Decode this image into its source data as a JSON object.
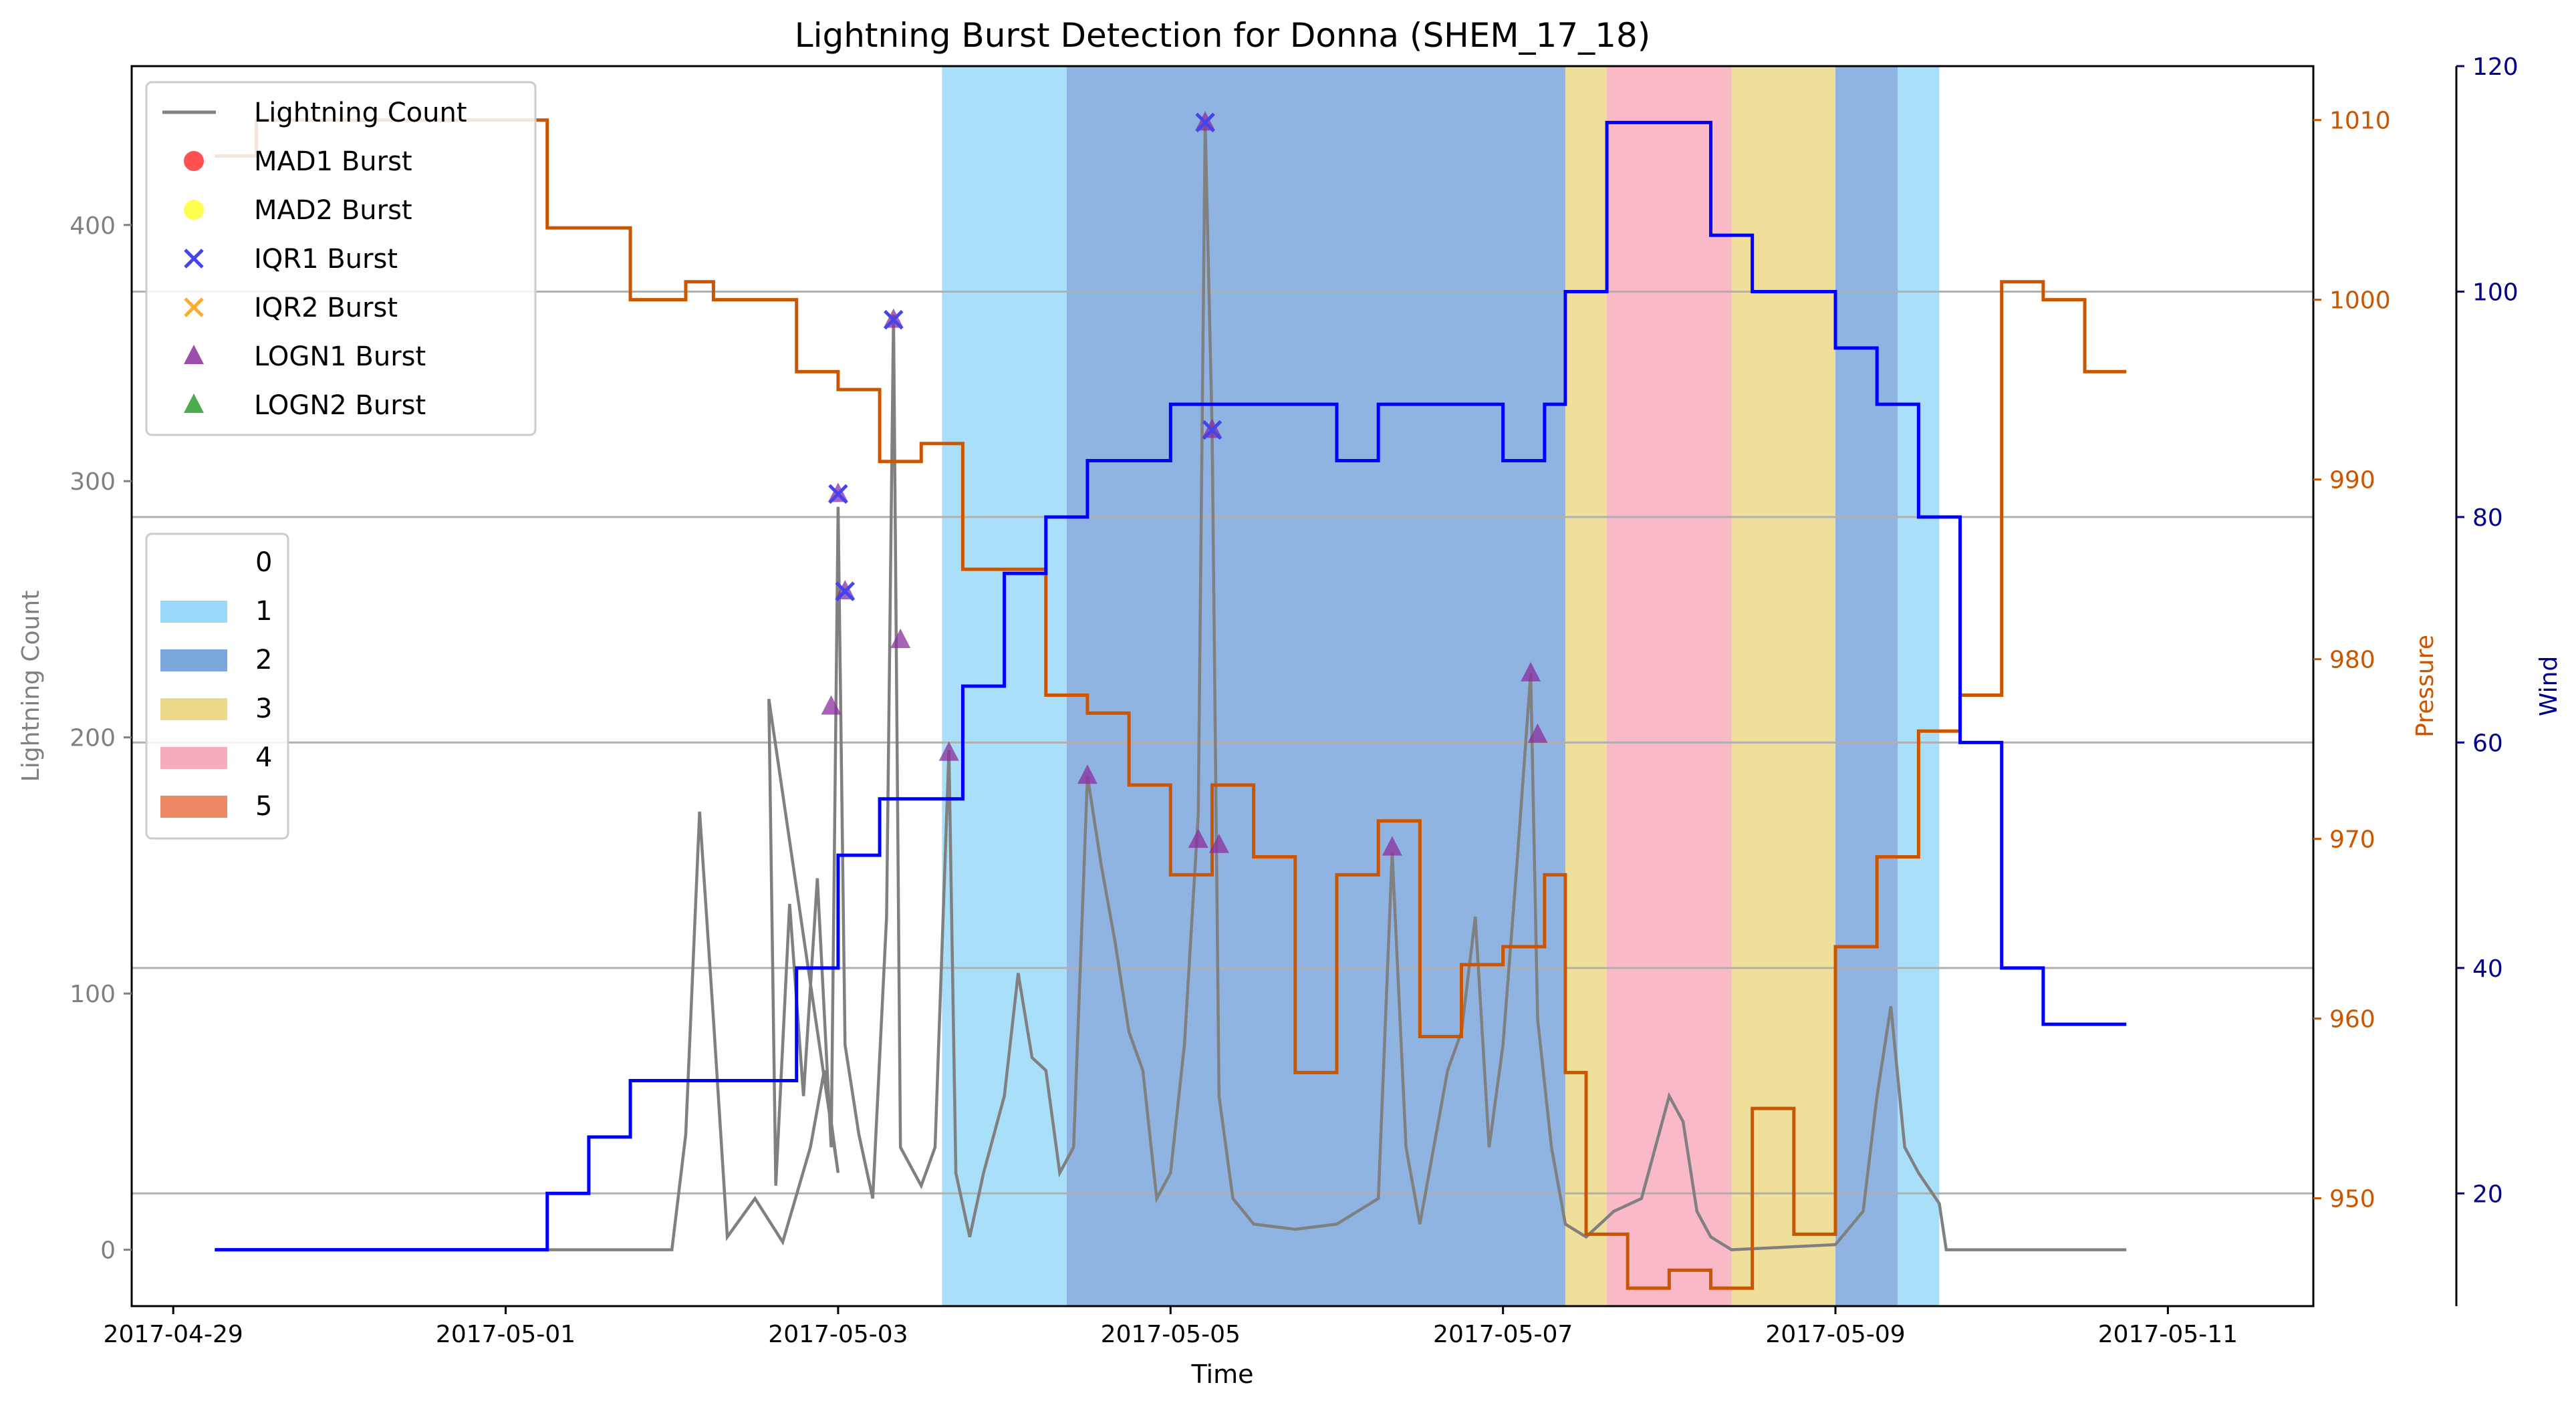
{
  "chart_data": {
    "type": "line",
    "title": "Lightning Burst Detection for Donna (SHEM_17_18)",
    "xlabel": "Time",
    "x_ticks": [
      "2017-04-29",
      "2017-05-01",
      "2017-05-03",
      "2017-05-05",
      "2017-05-07",
      "2017-05-09",
      "2017-05-11"
    ],
    "xlim": [
      "2017-04-28 18:00",
      "2017-05-11 21:00"
    ],
    "axes": {
      "left": {
        "label": "Lightning Count",
        "ylim": [
          -22,
          462
        ],
        "ticks": [
          0,
          100,
          200,
          300,
          400
        ],
        "color": "#808080"
      },
      "right1": {
        "label": "Pressure",
        "ylim": [
          944,
          1013
        ],
        "ticks": [
          950,
          960,
          970,
          980,
          990,
          1000,
          1010
        ],
        "color": "#cc5500"
      },
      "right2": {
        "label": "Wind",
        "ylim": [
          10,
          120
        ],
        "ticks": [
          20,
          40,
          60,
          80,
          100,
          120
        ],
        "color": "#00008b"
      }
    },
    "grid": "horizontal lines at right-axis (wind) ticks",
    "category_bands": [
      {
        "category": "1",
        "start": "2017-05-03 15:00",
        "end": "2017-05-04 09:00"
      },
      {
        "category": "2",
        "start": "2017-05-04 09:00",
        "end": "2017-05-07 09:00"
      },
      {
        "category": "3",
        "start": "2017-05-07 09:00",
        "end": "2017-05-07 15:00"
      },
      {
        "category": "4",
        "start": "2017-05-07 15:00",
        "end": "2017-05-08 09:00"
      },
      {
        "category": "3",
        "start": "2017-05-08 09:00",
        "end": "2017-05-09 00:00"
      },
      {
        "category": "2",
        "start": "2017-05-09 00:00",
        "end": "2017-05-09 09:00"
      },
      {
        "category": "1",
        "start": "2017-05-09 09:00",
        "end": "2017-05-09 15:00"
      }
    ],
    "series": [
      {
        "name": "Lightning Count",
        "axis": "left",
        "color": "#808080",
        "style": "line",
        "points": [
          [
            "2017-04-29 06:00",
            0
          ],
          [
            "2017-05-02 00:00",
            0
          ],
          [
            "2017-05-02 02:00",
            45
          ],
          [
            "2017-05-02 04:00",
            171
          ],
          [
            "2017-05-02 06:00",
            90
          ],
          [
            "2017-05-02 08:00",
            5
          ],
          [
            "2017-05-02 12:00",
            20
          ],
          [
            "2017-05-02 16:00",
            3
          ],
          [
            "2017-05-02 20:00",
            40
          ],
          [
            "2017-05-02 22:00",
            70
          ],
          [
            "2017-05-03 00:00",
            30
          ],
          [
            "2017-05-02 14:00",
            215
          ],
          [
            "2017-05-02 15:00",
            25
          ],
          [
            "2017-05-02 17:00",
            135
          ],
          [
            "2017-05-02 19:00",
            60
          ],
          [
            "2017-05-02 21:00",
            145
          ],
          [
            "2017-05-02 23:00",
            40
          ],
          [
            "2017-05-03 00:00",
            290
          ],
          [
            "2017-05-03 01:00",
            80
          ],
          [
            "2017-05-03 03:00",
            45
          ],
          [
            "2017-05-03 05:00",
            20
          ],
          [
            "2017-05-03 07:00",
            130
          ],
          [
            "2017-05-03 08:00",
            365
          ],
          [
            "2017-05-03 09:00",
            40
          ],
          [
            "2017-05-03 12:00",
            25
          ],
          [
            "2017-05-03 14:00",
            40
          ],
          [
            "2017-05-03 16:00",
            195
          ],
          [
            "2017-05-03 17:00",
            30
          ],
          [
            "2017-05-03 19:00",
            5
          ],
          [
            "2017-05-03 21:00",
            30
          ],
          [
            "2017-05-04 00:00",
            60
          ],
          [
            "2017-05-04 02:00",
            108
          ],
          [
            "2017-05-04 04:00",
            75
          ],
          [
            "2017-05-04 06:00",
            70
          ],
          [
            "2017-05-04 08:00",
            30
          ],
          [
            "2017-05-04 10:00",
            40
          ],
          [
            "2017-05-04 12:00",
            185
          ],
          [
            "2017-05-04 14:00",
            150
          ],
          [
            "2017-05-04 16:00",
            120
          ],
          [
            "2017-05-04 18:00",
            85
          ],
          [
            "2017-05-04 20:00",
            70
          ],
          [
            "2017-05-04 22:00",
            20
          ],
          [
            "2017-05-05 00:00",
            30
          ],
          [
            "2017-05-05 02:00",
            80
          ],
          [
            "2017-05-05 04:00",
            170
          ],
          [
            "2017-05-05 05:00",
            440
          ],
          [
            "2017-05-05 06:00",
            320
          ],
          [
            "2017-05-05 07:00",
            60
          ],
          [
            "2017-05-05 09:00",
            20
          ],
          [
            "2017-05-05 12:00",
            10
          ],
          [
            "2017-05-05 18:00",
            8
          ],
          [
            "2017-05-06 00:00",
            10
          ],
          [
            "2017-05-06 06:00",
            20
          ],
          [
            "2017-05-06 08:00",
            155
          ],
          [
            "2017-05-06 10:00",
            40
          ],
          [
            "2017-05-06 12:00",
            10
          ],
          [
            "2017-05-06 16:00",
            70
          ],
          [
            "2017-05-06 18:00",
            85
          ],
          [
            "2017-05-06 20:00",
            130
          ],
          [
            "2017-05-06 22:00",
            40
          ],
          [
            "2017-05-07 00:00",
            80
          ],
          [
            "2017-05-07 02:00",
            150
          ],
          [
            "2017-05-07 04:00",
            225
          ],
          [
            "2017-05-07 05:00",
            90
          ],
          [
            "2017-05-07 07:00",
            40
          ],
          [
            "2017-05-07 09:00",
            10
          ],
          [
            "2017-05-07 12:00",
            5
          ],
          [
            "2017-05-07 16:00",
            15
          ],
          [
            "2017-05-07 20:00",
            20
          ],
          [
            "2017-05-08 00:00",
            60
          ],
          [
            "2017-05-08 02:00",
            50
          ],
          [
            "2017-05-08 04:00",
            15
          ],
          [
            "2017-05-08 06:00",
            5
          ],
          [
            "2017-05-08 09:00",
            0
          ],
          [
            "2017-05-09 00:00",
            2
          ],
          [
            "2017-05-09 04:00",
            15
          ],
          [
            "2017-05-09 06:00",
            60
          ],
          [
            "2017-05-09 08:00",
            95
          ],
          [
            "2017-05-09 10:00",
            40
          ],
          [
            "2017-05-09 12:00",
            30
          ],
          [
            "2017-05-09 15:00",
            18
          ],
          [
            "2017-05-09 16:00",
            0
          ],
          [
            "2017-05-10 18:00",
            0
          ]
        ]
      },
      {
        "name": "Pressure",
        "axis": "right1",
        "color": "#cc5500",
        "style": "step",
        "points": [
          [
            "2017-04-29 06:00",
            1008
          ],
          [
            "2017-04-29 12:00",
            1010
          ],
          [
            "2017-05-01 00:00",
            1010
          ],
          [
            "2017-05-01 06:00",
            1004
          ],
          [
            "2017-05-01 12:00",
            1004
          ],
          [
            "2017-05-01 18:00",
            1000
          ],
          [
            "2017-05-02 00:00",
            1000
          ],
          [
            "2017-05-02 02:00",
            1001
          ],
          [
            "2017-05-02 06:00",
            1000
          ],
          [
            "2017-05-02 12:00",
            1000
          ],
          [
            "2017-05-02 18:00",
            996
          ],
          [
            "2017-05-03 00:00",
            995
          ],
          [
            "2017-05-03 06:00",
            991
          ],
          [
            "2017-05-03 12:00",
            992
          ],
          [
            "2017-05-03 18:00",
            985
          ],
          [
            "2017-05-04 00:00",
            985
          ],
          [
            "2017-05-04 06:00",
            978
          ],
          [
            "2017-05-04 12:00",
            977
          ],
          [
            "2017-05-04 18:00",
            973
          ],
          [
            "2017-05-05 00:00",
            968
          ],
          [
            "2017-05-05 06:00",
            973
          ],
          [
            "2017-05-05 12:00",
            969
          ],
          [
            "2017-05-05 18:00",
            957
          ],
          [
            "2017-05-06 00:00",
            968
          ],
          [
            "2017-05-06 06:00",
            971
          ],
          [
            "2017-05-06 12:00",
            959
          ],
          [
            "2017-05-06 18:00",
            963
          ],
          [
            "2017-05-07 00:00",
            964
          ],
          [
            "2017-05-07 06:00",
            968
          ],
          [
            "2017-05-07 09:00",
            957
          ],
          [
            "2017-05-07 12:00",
            948
          ],
          [
            "2017-05-07 18:00",
            945
          ],
          [
            "2017-05-08 00:00",
            946
          ],
          [
            "2017-05-08 06:00",
            945
          ],
          [
            "2017-05-08 12:00",
            955
          ],
          [
            "2017-05-08 18:00",
            948
          ],
          [
            "2017-05-09 00:00",
            964
          ],
          [
            "2017-05-09 06:00",
            969
          ],
          [
            "2017-05-09 12:00",
            976
          ],
          [
            "2017-05-09 18:00",
            978
          ],
          [
            "2017-05-10 00:00",
            1001
          ],
          [
            "2017-05-10 06:00",
            1000
          ],
          [
            "2017-05-10 12:00",
            996
          ],
          [
            "2017-05-10 18:00",
            996
          ]
        ]
      },
      {
        "name": "Wind",
        "axis": "right2",
        "color": "#0000ff",
        "style": "step",
        "points": [
          [
            "2017-04-29 06:00",
            15
          ],
          [
            "2017-05-01 00:00",
            15
          ],
          [
            "2017-05-01 06:00",
            20
          ],
          [
            "2017-05-01 12:00",
            25
          ],
          [
            "2017-05-01 18:00",
            30
          ],
          [
            "2017-05-02 00:00",
            30
          ],
          [
            "2017-05-02 06:00",
            30
          ],
          [
            "2017-05-02 12:00",
            30
          ],
          [
            "2017-05-02 18:00",
            40
          ],
          [
            "2017-05-03 00:00",
            50
          ],
          [
            "2017-05-03 06:00",
            55
          ],
          [
            "2017-05-03 12:00",
            55
          ],
          [
            "2017-05-03 18:00",
            65
          ],
          [
            "2017-05-04 00:00",
            75
          ],
          [
            "2017-05-04 06:00",
            80
          ],
          [
            "2017-05-04 12:00",
            85
          ],
          [
            "2017-05-04 18:00",
            85
          ],
          [
            "2017-05-05 00:00",
            90
          ],
          [
            "2017-05-05 06:00",
            90
          ],
          [
            "2017-05-05 12:00",
            90
          ],
          [
            "2017-05-05 18:00",
            90
          ],
          [
            "2017-05-06 00:00",
            85
          ],
          [
            "2017-05-06 06:00",
            90
          ],
          [
            "2017-05-06 12:00",
            90
          ],
          [
            "2017-05-06 18:00",
            90
          ],
          [
            "2017-05-07 00:00",
            85
          ],
          [
            "2017-05-07 06:00",
            90
          ],
          [
            "2017-05-07 09:00",
            100
          ],
          [
            "2017-05-07 15:00",
            115
          ],
          [
            "2017-05-08 00:00",
            115
          ],
          [
            "2017-05-08 06:00",
            105
          ],
          [
            "2017-05-08 12:00",
            100
          ],
          [
            "2017-05-08 18:00",
            100
          ],
          [
            "2017-05-09 00:00",
            95
          ],
          [
            "2017-05-09 06:00",
            90
          ],
          [
            "2017-05-09 12:00",
            80
          ],
          [
            "2017-05-09 18:00",
            60
          ],
          [
            "2017-05-10 00:00",
            40
          ],
          [
            "2017-05-10 06:00",
            35
          ],
          [
            "2017-05-10 18:00",
            35
          ]
        ]
      },
      {
        "name": "IQR1 Burst",
        "axis": "left",
        "color": "#4444ee",
        "style": "marker-x",
        "points": [
          [
            "2017-05-03 00:00",
            295
          ],
          [
            "2017-05-03 01:00",
            257
          ],
          [
            "2017-05-03 08:00",
            363
          ],
          [
            "2017-05-05 05:00",
            440
          ],
          [
            "2017-05-05 06:00",
            320
          ]
        ]
      },
      {
        "name": "LOGN1 Burst",
        "axis": "left",
        "color": "#8a2f9e",
        "style": "marker-triangle",
        "points": [
          [
            "2017-05-02 23:00",
            212
          ],
          [
            "2017-05-03 00:00",
            295
          ],
          [
            "2017-05-03 01:00",
            257
          ],
          [
            "2017-05-03 08:00",
            363
          ],
          [
            "2017-05-03 09:00",
            238
          ],
          [
            "2017-05-03 16:00",
            194
          ],
          [
            "2017-05-04 12:00",
            185
          ],
          [
            "2017-05-05 04:00",
            160
          ],
          [
            "2017-05-05 05:00",
            440
          ],
          [
            "2017-05-05 06:00",
            320
          ],
          [
            "2017-05-05 07:00",
            158
          ],
          [
            "2017-05-06 08:00",
            157
          ],
          [
            "2017-05-07 04:00",
            225
          ],
          [
            "2017-05-07 05:00",
            201
          ]
        ]
      }
    ],
    "legend_top_left": [
      {
        "label": "Lightning Count",
        "kind": "line",
        "color": "#808080"
      },
      {
        "label": "MAD1 Burst",
        "kind": "circle",
        "color": "#ff3333"
      },
      {
        "label": "MAD2 Burst",
        "kind": "circle",
        "color": "#ffff33"
      },
      {
        "label": "IQR1 Burst",
        "kind": "x",
        "color": "#4444ee"
      },
      {
        "label": "IQR2 Burst",
        "kind": "x",
        "color": "#ffaa33"
      },
      {
        "label": "LOGN1 Burst",
        "kind": "triangle",
        "color": "#8a2f9e"
      },
      {
        "label": "LOGN2 Burst",
        "kind": "triangle",
        "color": "#2e9e2e"
      }
    ],
    "legend_categories": [
      {
        "label": "0",
        "color": "#ffffff"
      },
      {
        "label": "1",
        "color": "#9ad9f7"
      },
      {
        "label": "2",
        "color": "#7ca7dd"
      },
      {
        "label": "3",
        "color": "#ecd98a"
      },
      {
        "label": "4",
        "color": "#f9adbc"
      },
      {
        "label": "5",
        "color": "#ee8866"
      }
    ]
  }
}
